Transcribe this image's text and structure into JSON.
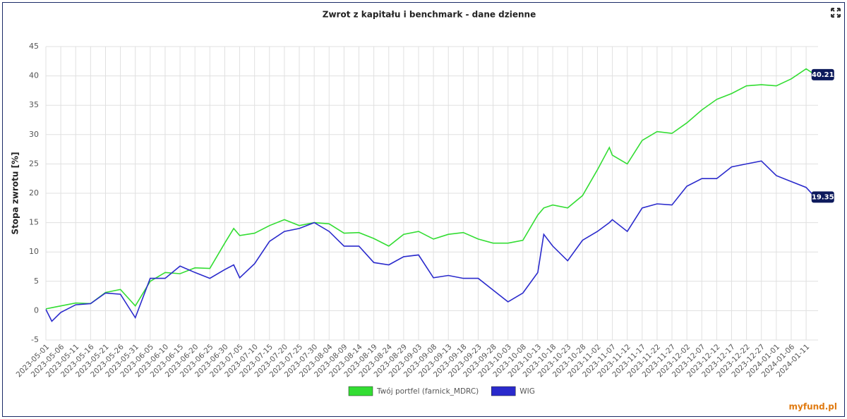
{
  "chart_data": {
    "type": "line",
    "title": "Zwrot z kapitału i benchmark - dane dzienne",
    "y_label": "Stopa zwrotu [%]",
    "logo": "myfund.pl",
    "x": [
      "2023-05-01",
      "2023-05-03",
      "2023-05-06",
      "2023-05-11",
      "2023-05-16",
      "2023-05-21",
      "2023-05-26",
      "2023-05-31",
      "2023-06-05",
      "2023-06-10",
      "2023-06-15",
      "2023-06-20",
      "2023-06-25",
      "2023-06-30",
      "2023-07-03",
      "2023-07-05",
      "2023-07-10",
      "2023-07-15",
      "2023-07-20",
      "2023-07-25",
      "2023-07-30",
      "2023-08-04",
      "2023-08-09",
      "2023-08-14",
      "2023-08-19",
      "2023-08-24",
      "2023-08-29",
      "2023-09-03",
      "2023-09-08",
      "2023-09-13",
      "2023-09-18",
      "2023-09-23",
      "2023-09-28",
      "2023-10-03",
      "2023-10-08",
      "2023-10-13",
      "2023-10-15",
      "2023-10-18",
      "2023-10-23",
      "2023-10-28",
      "2023-11-02",
      "2023-11-06",
      "2023-11-07",
      "2023-11-12",
      "2023-11-17",
      "2023-11-22",
      "2023-11-27",
      "2023-12-02",
      "2023-12-07",
      "2023-12-12",
      "2023-12-17",
      "2023-12-22",
      "2023-12-27",
      "2024-01-01",
      "2024-01-06",
      "2024-01-11",
      "2024-01-14"
    ],
    "series": [
      {
        "name": "Twój portfel (farnick_MDRC)",
        "color": "#33dd33",
        "values": [
          0.3,
          0.5,
          0.8,
          1.3,
          1.2,
          3.1,
          3.6,
          0.8,
          5.0,
          6.5,
          6.3,
          7.3,
          7.2,
          11.5,
          14.0,
          12.8,
          13.2,
          14.5,
          15.5,
          14.5,
          15.0,
          14.8,
          13.2,
          13.3,
          12.3,
          11.0,
          13.0,
          13.5,
          12.2,
          13.0,
          13.3,
          12.2,
          11.5,
          11.5,
          12.0,
          16.3,
          17.5,
          18.0,
          17.5,
          19.6,
          24.0,
          27.8,
          26.5,
          25.0,
          29.0,
          30.5,
          30.2,
          32.0,
          34.2,
          36.0,
          37.0,
          38.3,
          38.5,
          38.3,
          39.5,
          41.2,
          40.21
        ]
      },
      {
        "name": "WIG",
        "color": "#2a2acc",
        "values": [
          0.2,
          -1.8,
          -0.3,
          1.0,
          1.2,
          3.0,
          2.8,
          -1.2,
          5.5,
          5.5,
          7.6,
          6.5,
          5.5,
          7.0,
          7.8,
          5.6,
          8.0,
          11.8,
          13.5,
          14.0,
          15.0,
          13.5,
          11.0,
          11.0,
          8.2,
          7.8,
          9.2,
          9.5,
          5.6,
          6.0,
          5.5,
          5.5,
          3.5,
          1.5,
          3.0,
          6.5,
          13.0,
          11.0,
          8.5,
          12.0,
          13.5,
          15.0,
          15.5,
          13.5,
          17.5,
          18.2,
          18.0,
          21.2,
          22.5,
          22.5,
          24.5,
          25.0,
          25.5,
          23.0,
          22.0,
          21.0,
          19.35
        ]
      }
    ],
    "xlim": [
      "2023-05-01",
      "2024-01-15"
    ],
    "xticks": [
      "2023-05-01",
      "2023-05-06",
      "2023-05-11",
      "2023-05-16",
      "2023-05-21",
      "2023-05-26",
      "2023-05-31",
      "2023-06-05",
      "2023-06-10",
      "2023-06-15",
      "2023-06-20",
      "2023-06-25",
      "2023-06-30",
      "2023-07-05",
      "2023-07-10",
      "2023-07-15",
      "2023-07-20",
      "2023-07-25",
      "2023-07-30",
      "2023-08-04",
      "2023-08-09",
      "2023-08-14",
      "2023-08-19",
      "2023-08-24",
      "2023-08-29",
      "2023-09-03",
      "2023-09-08",
      "2023-09-13",
      "2023-09-18",
      "2023-09-23",
      "2023-09-28",
      "2023-10-03",
      "2023-10-08",
      "2023-10-13",
      "2023-10-18",
      "2023-10-23",
      "2023-10-28",
      "2023-11-02",
      "2023-11-07",
      "2023-11-12",
      "2023-11-17",
      "2023-11-22",
      "2023-11-27",
      "2023-12-02",
      "2023-12-07",
      "2023-12-12",
      "2023-12-17",
      "2023-12-22",
      "2023-12-27",
      "2024-01-01",
      "2024-01-06",
      "2024-01-11"
    ],
    "ylim": [
      -5,
      45
    ],
    "yticks": [
      -5,
      0,
      5,
      10,
      15,
      20,
      25,
      30,
      35,
      40,
      45
    ],
    "grid": true
  }
}
